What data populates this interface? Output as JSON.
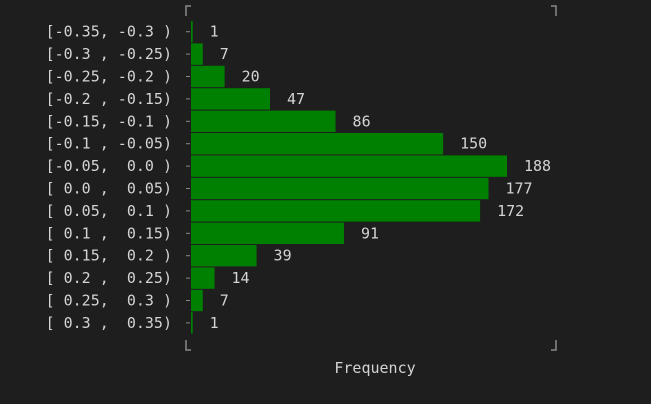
{
  "chart_data": {
    "type": "bar",
    "orientation": "horizontal",
    "categories": [
      "[-0.35, -0.3 )",
      "[-0.3 , -0.25)",
      "[-0.25, -0.2 )",
      "[-0.2 , -0.15)",
      "[-0.15, -0.1 )",
      "[-0.1 , -0.05)",
      "[-0.05,  0.0 )",
      "[ 0.0 ,  0.05)",
      "[ 0.05,  0.1 )",
      "[ 0.1 ,  0.15)",
      "[ 0.15,  0.2 )",
      "[ 0.2 ,  0.25)",
      "[ 0.25,  0.3 )",
      "[ 0.3 ,  0.35)"
    ],
    "values": [
      1,
      7,
      20,
      47,
      86,
      150,
      188,
      177,
      172,
      91,
      39,
      14,
      7,
      1
    ],
    "xlabel": "Frequency",
    "bar_color": "#008000",
    "text_color": "#d4d4d4",
    "frame_color": "#8a8a8a"
  }
}
